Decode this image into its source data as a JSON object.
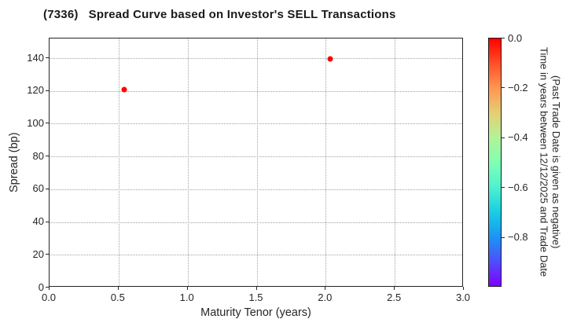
{
  "title": "(7336)   Spread Curve based on Investor's SELL Transactions",
  "chart_data": {
    "type": "scatter",
    "title": "(7336)   Spread Curve based on Investor's SELL Transactions",
    "xlabel": "Maturity Tenor (years)",
    "ylabel": "Spread (bp)",
    "xlim": [
      0.0,
      3.0
    ],
    "ylim": [
      0.0,
      152.0
    ],
    "x_tick_values": [
      0.0,
      0.5,
      1.0,
      1.5,
      2.0,
      2.5,
      3.0
    ],
    "x_tick_labels": [
      "0.0",
      "0.5",
      "1.0",
      "1.5",
      "2.0",
      "2.5",
      "3.0"
    ],
    "y_tick_values": [
      0,
      20,
      40,
      60,
      80,
      100,
      120,
      140
    ],
    "y_tick_labels": [
      "0",
      "20",
      "40",
      "60",
      "80",
      "100",
      "120",
      "140"
    ],
    "grid": {
      "style": "dotted",
      "color": "#a3a3a3",
      "x_interval": 0.5,
      "y_interval": 20
    },
    "series": [
      {
        "name": "Investor SELL transactions",
        "marker": "circle",
        "points": [
          {
            "tenor": 0.54,
            "spread": 121.0,
            "time_value": 0.0
          },
          {
            "tenor": 2.03,
            "spread": 139.5,
            "time_value": 0.0
          }
        ]
      }
    ],
    "colorbar": {
      "colormap": "rainbow",
      "vmin": -1.0,
      "vmax": 0.0,
      "tick_values": [
        0.0,
        -0.2,
        -0.4,
        -0.6,
        -0.8
      ],
      "tick_labels": [
        "0.0",
        "−0.2",
        "−0.4",
        "−0.6",
        "−0.8"
      ],
      "label_line1": "Time in years between 12/12/2025 and Trade Date",
      "label_line2": "(Past Trade Date is given as negative)"
    },
    "colors": {
      "marker_recent": "#ff0000",
      "spine": "#262626",
      "tick_text": "#262626",
      "grid": "#a3a3a3"
    }
  }
}
